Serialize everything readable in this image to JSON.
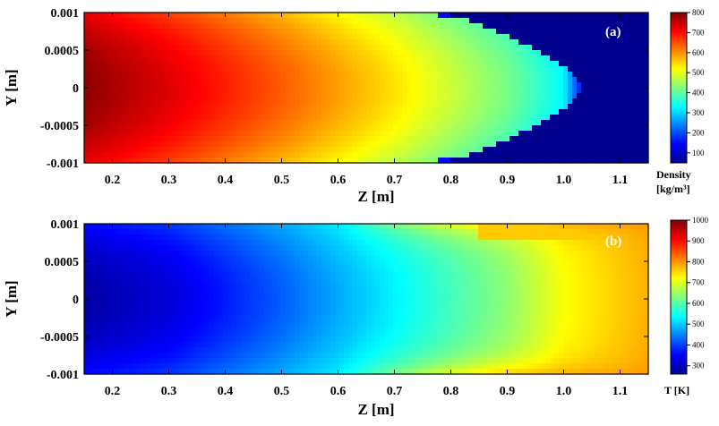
{
  "chart_data": [
    {
      "type": "heatmap",
      "panel_label": "(a)",
      "xlabel": "Z [m]",
      "ylabel": "Y [m]",
      "xlim": [
        0.15,
        1.15
      ],
      "ylim": [
        -0.001,
        0.001
      ],
      "x_ticks": [
        "0.2",
        "0.3",
        "0.4",
        "0.5",
        "0.6",
        "0.7",
        "0.8",
        "0.9",
        "1.0",
        "1.1"
      ],
      "y_ticks": [
        "0.001",
        "0.0005",
        "0",
        "-0.0005",
        "-0.001"
      ],
      "colorbar": {
        "title_line1": "Density",
        "title_line2": "[kg/m³]",
        "ticks": [
          "800",
          "700",
          "600",
          "500",
          "400",
          "300",
          "200",
          "100"
        ],
        "range": [
          50,
          800
        ]
      },
      "field": {
        "description_values": "density along centerline (Z, value)",
        "centerline": [
          [
            0.15,
            790
          ],
          [
            0.3,
            730
          ],
          [
            0.5,
            640
          ],
          [
            0.7,
            540
          ],
          [
            0.9,
            420
          ],
          [
            1.0,
            330
          ],
          [
            1.05,
            50
          ],
          [
            1.15,
            50
          ]
        ],
        "wall_front_z": 0.8,
        "ambient_value": 50
      }
    },
    {
      "type": "heatmap",
      "panel_label": "(b)",
      "xlabel": "Z [m]",
      "ylabel": "Y [m]",
      "xlim": [
        0.15,
        1.15
      ],
      "ylim": [
        -0.001,
        0.001
      ],
      "x_ticks": [
        "0.2",
        "0.3",
        "0.4",
        "0.5",
        "0.6",
        "0.7",
        "0.8",
        "0.9",
        "1.0",
        "1.1"
      ],
      "y_ticks": [
        "0.001",
        "0.0005",
        "0",
        "-0.0005",
        "-0.001"
      ],
      "colorbar": {
        "title": "T [K]",
        "ticks": [
          "1000",
          "900",
          "800",
          "700",
          "600",
          "500",
          "400",
          "300"
        ],
        "range": [
          260,
          1000
        ]
      },
      "field": {
        "description_values": "temperature along centerline (Z, value)",
        "centerline": [
          [
            0.15,
            280
          ],
          [
            0.3,
            320
          ],
          [
            0.5,
            420
          ],
          [
            0.7,
            530
          ],
          [
            0.9,
            640
          ],
          [
            1.0,
            720
          ],
          [
            1.15,
            780
          ]
        ],
        "wall_value": 800
      }
    }
  ]
}
